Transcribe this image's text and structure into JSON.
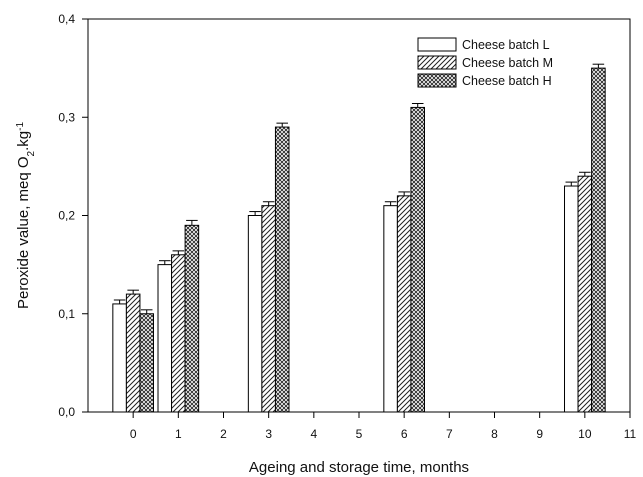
{
  "chart_data": {
    "type": "bar",
    "x_ticks": [
      "0",
      "1",
      "2",
      "3",
      "4",
      "5",
      "6",
      "7",
      "8",
      "9",
      "10",
      "11"
    ],
    "categories": [
      0,
      1,
      3,
      6,
      10
    ],
    "xlim": [
      -1,
      11
    ],
    "ylim": [
      0,
      0.4
    ],
    "y_ticks": [
      0.0,
      0.1,
      0.2,
      0.3,
      0.4
    ],
    "y_tick_labels": [
      "0,0",
      "0,1",
      "0,2",
      "0,3",
      "0,4"
    ],
    "xlabel": "Ageing and storage time, months",
    "ylabel": {
      "prefix": "Peroxide value, meq O",
      "sub": "2",
      "mid": ".kg",
      "sup": "-1"
    },
    "legend_position": "top-right",
    "grid": false,
    "series": [
      {
        "name": "Cheese batch L",
        "pattern": "plain",
        "values": [
          0.11,
          0.15,
          0.2,
          0.21,
          0.23
        ],
        "errors": [
          0.004,
          0.004,
          0.004,
          0.004,
          0.004
        ]
      },
      {
        "name": "Cheese batch M",
        "pattern": "hatched",
        "values": [
          0.12,
          0.16,
          0.21,
          0.22,
          0.24
        ],
        "errors": [
          0.004,
          0.004,
          0.004,
          0.004,
          0.004
        ]
      },
      {
        "name": "Cheese batch H",
        "pattern": "crosshatched",
        "values": [
          0.1,
          0.19,
          0.29,
          0.31,
          0.35
        ],
        "errors": [
          0.004,
          0.005,
          0.004,
          0.004,
          0.004
        ]
      }
    ]
  }
}
